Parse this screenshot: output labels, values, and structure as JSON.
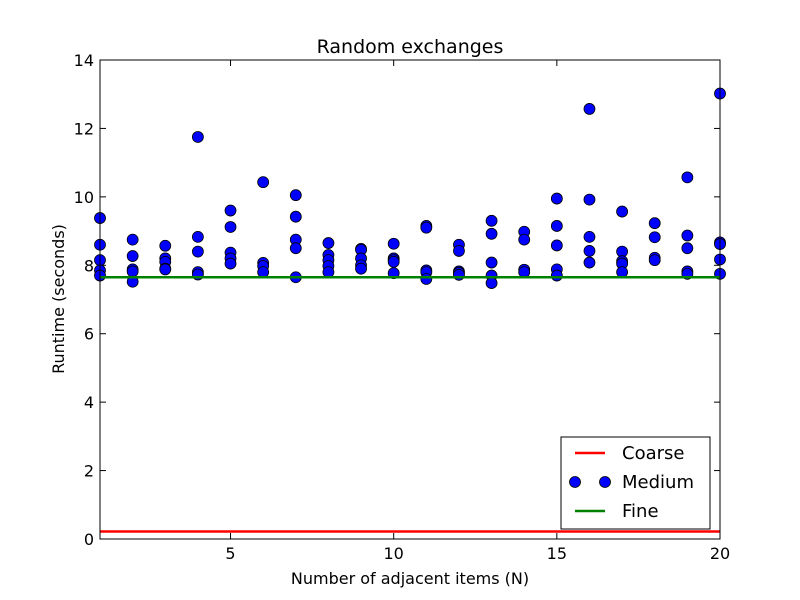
{
  "chart_data": {
    "type": "scatter",
    "title": "Random exchanges",
    "xlabel": "Number of adjacent items (N)",
    "ylabel": "Runtime (seconds)",
    "xlim": [
      1,
      20
    ],
    "ylim": [
      0,
      14
    ],
    "xticks": [
      5,
      10,
      15,
      20
    ],
    "yticks": [
      0,
      2,
      4,
      6,
      8,
      10,
      12,
      14
    ],
    "grid": false,
    "legend_position": "bottom-right",
    "series": [
      {
        "name": "Coarse",
        "kind": "hline",
        "y": 0.22,
        "color": "#ff0000"
      },
      {
        "name": "Medium",
        "kind": "points",
        "color": "#0000ff",
        "points": [
          [
            1,
            9.38
          ],
          [
            1,
            8.6
          ],
          [
            1,
            8.15
          ],
          [
            1,
            7.85
          ],
          [
            1,
            7.7
          ],
          [
            2,
            8.75
          ],
          [
            2,
            8.27
          ],
          [
            2,
            7.88
          ],
          [
            2,
            7.82
          ],
          [
            2,
            7.52
          ],
          [
            3,
            8.57
          ],
          [
            3,
            8.2
          ],
          [
            3,
            8.1
          ],
          [
            3,
            7.9
          ],
          [
            3,
            7.88
          ],
          [
            4,
            11.75
          ],
          [
            4,
            8.83
          ],
          [
            4,
            8.4
          ],
          [
            4,
            7.8
          ],
          [
            4,
            7.73
          ],
          [
            5,
            9.6
          ],
          [
            5,
            9.12
          ],
          [
            5,
            8.37
          ],
          [
            5,
            8.2
          ],
          [
            5,
            8.05
          ],
          [
            6,
            10.43
          ],
          [
            6,
            8.07
          ],
          [
            6,
            7.98
          ],
          [
            6,
            7.8
          ],
          [
            7,
            10.05
          ],
          [
            7,
            9.42
          ],
          [
            7,
            8.75
          ],
          [
            7,
            8.5
          ],
          [
            7,
            7.65
          ],
          [
            8,
            8.65
          ],
          [
            8,
            8.3
          ],
          [
            8,
            8.15
          ],
          [
            8,
            7.98
          ],
          [
            8,
            7.8
          ],
          [
            9,
            8.48
          ],
          [
            9,
            8.45
          ],
          [
            9,
            8.2
          ],
          [
            9,
            8.0
          ],
          [
            9,
            7.9
          ],
          [
            10,
            8.63
          ],
          [
            10,
            8.2
          ],
          [
            10,
            8.15
          ],
          [
            10,
            8.1
          ],
          [
            10,
            7.77
          ],
          [
            11,
            9.15
          ],
          [
            11,
            9.1
          ],
          [
            11,
            7.85
          ],
          [
            11,
            7.8
          ],
          [
            11,
            7.6
          ],
          [
            12,
            8.6
          ],
          [
            12,
            8.42
          ],
          [
            12,
            7.82
          ],
          [
            12,
            7.78
          ],
          [
            12,
            7.72
          ],
          [
            13,
            9.3
          ],
          [
            13,
            8.92
          ],
          [
            13,
            8.08
          ],
          [
            13,
            7.7
          ],
          [
            13,
            7.48
          ],
          [
            14,
            8.98
          ],
          [
            14,
            8.75
          ],
          [
            14,
            7.87
          ],
          [
            14,
            7.8
          ],
          [
            15,
            9.95
          ],
          [
            15,
            9.15
          ],
          [
            15,
            8.58
          ],
          [
            15,
            7.88
          ],
          [
            15,
            7.7
          ],
          [
            16,
            12.57
          ],
          [
            16,
            9.92
          ],
          [
            16,
            8.83
          ],
          [
            16,
            8.42
          ],
          [
            16,
            8.08
          ],
          [
            17,
            9.57
          ],
          [
            17,
            8.4
          ],
          [
            17,
            8.12
          ],
          [
            17,
            8.05
          ],
          [
            17,
            7.8
          ],
          [
            18,
            9.23
          ],
          [
            18,
            8.82
          ],
          [
            18,
            8.22
          ],
          [
            18,
            8.15
          ],
          [
            19,
            10.57
          ],
          [
            19,
            8.87
          ],
          [
            19,
            8.5
          ],
          [
            19,
            7.82
          ],
          [
            19,
            7.75
          ],
          [
            20,
            13.02
          ],
          [
            20,
            8.67
          ],
          [
            20,
            8.62
          ],
          [
            20,
            8.17
          ],
          [
            20,
            7.75
          ]
        ]
      },
      {
        "name": "Fine",
        "kind": "hline",
        "y": 7.65,
        "color": "#008000"
      }
    ]
  }
}
